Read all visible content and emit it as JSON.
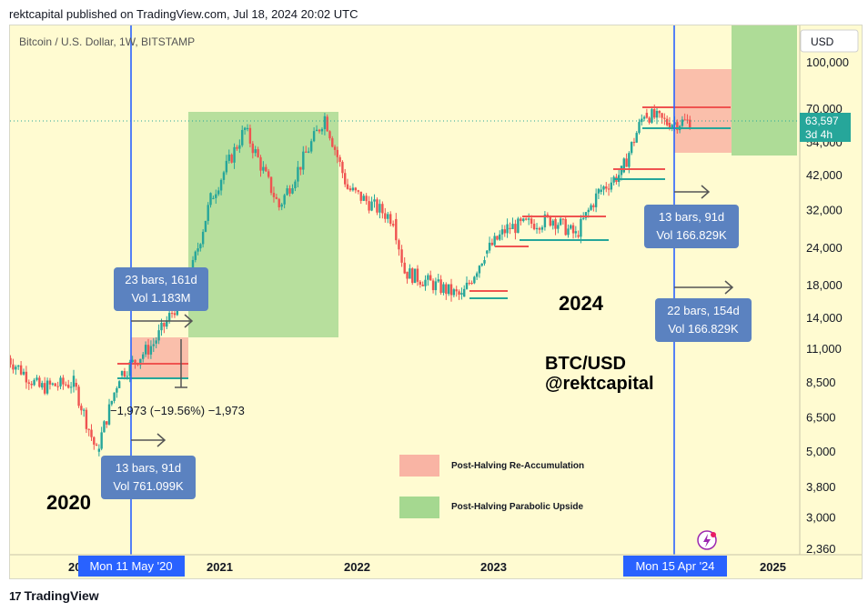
{
  "header": {
    "text": "rektcapital published on TradingView.com, Jul 18, 2024 20:02 UTC"
  },
  "symbol_label": "Bitcoin / U.S. Dollar, 1W, BITSTAMP",
  "currency_button": "USD",
  "price_tag": {
    "price": "63,597",
    "countdown": "3d 4h"
  },
  "footer": {
    "brand": "TradingView",
    "logo": "17"
  },
  "colors": {
    "background": "#fffbd1",
    "halving_line": "#2962ff",
    "reaccumulation_zone": "#f9b4a4",
    "parabolic_zone": "#a5d890",
    "candle_up": "#26a69a",
    "candle_down": "#ef5350",
    "badge": "#5b82c0"
  },
  "annotations": {
    "year_2020": "2020",
    "year_2024": "2024",
    "watermark_line1": "BTC/USD",
    "watermark_line2": "@rektcapital",
    "drop_label": "−1,973 (−19.56%) −1,973"
  },
  "badges": [
    {
      "line1": "23 bars, 161d",
      "line2": "Vol 1.183M"
    },
    {
      "line1": "13 bars, 91d",
      "line2": "Vol 761.099K"
    },
    {
      "line1": "13 bars, 91d",
      "line2": "Vol 166.829K"
    },
    {
      "line1": "22 bars, 154d",
      "line2": "Vol 166.829K"
    }
  ],
  "legend": [
    {
      "label": "Post-Halving Re-Accumulation",
      "color": "#f9b4a4"
    },
    {
      "label": "Post-Halving Parabolic Upside",
      "color": "#a5d890"
    }
  ],
  "halving_labels": [
    "Mon 11 May '20",
    "Mon 15 Apr '24"
  ],
  "chart_data": {
    "type": "candlestick",
    "title": "Bitcoin / U.S. Dollar, 1W, BITSTAMP",
    "scale": "log",
    "y_ticks": [
      "100,000",
      "70,000",
      "54,000",
      "42,000",
      "32,000",
      "24,000",
      "18,000",
      "14,000",
      "11,000",
      "8,500",
      "6,500",
      "5,000",
      "3,800",
      "3,000",
      "2,360"
    ],
    "x_ticks": [
      "2021",
      "2022",
      "2023",
      "2025"
    ],
    "halving_dates": [
      "2020-05-11",
      "2024-04-15"
    ],
    "last_price": 63597,
    "approx_weekly_close_path": [
      [
        "2019-07",
        10500
      ],
      [
        "2019-10",
        8200
      ],
      [
        "2020-01",
        8500
      ],
      [
        "2020-03",
        5000
      ],
      [
        "2020-05",
        9000
      ],
      [
        "2020-08",
        11500
      ],
      [
        "2020-11",
        18000
      ],
      [
        "2021-01",
        35000
      ],
      [
        "2021-04",
        60000
      ],
      [
        "2021-07",
        33000
      ],
      [
        "2021-11",
        66000
      ],
      [
        "2022-01",
        38000
      ],
      [
        "2022-05",
        30000
      ],
      [
        "2022-06",
        20000
      ],
      [
        "2022-11",
        16500
      ],
      [
        "2023-01",
        23000
      ],
      [
        "2023-03",
        28000
      ],
      [
        "2023-07",
        30000
      ],
      [
        "2023-09",
        26500
      ],
      [
        "2023-11",
        37000
      ],
      [
        "2024-01",
        43000
      ],
      [
        "2024-03",
        68000
      ],
      [
        "2024-05",
        63000
      ],
      [
        "2024-07",
        63597
      ]
    ]
  }
}
